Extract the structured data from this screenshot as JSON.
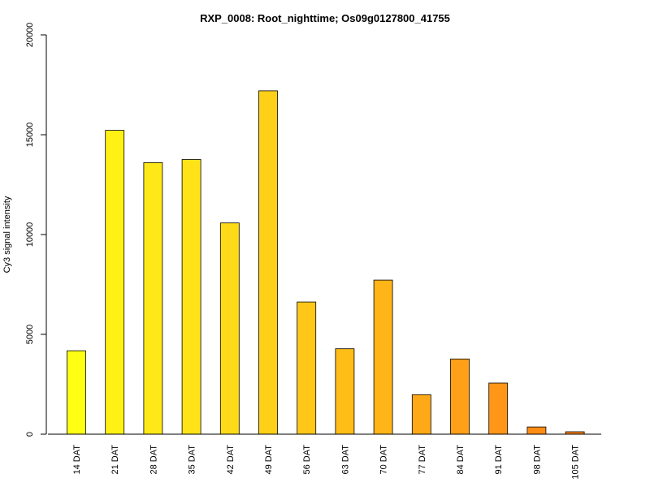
{
  "chart_data": {
    "type": "bar",
    "title": "RXP_0008: Root_nighttime; Os09g0127800_41755",
    "xlabel": "",
    "ylabel": "Cy3 signal intensity",
    "ylim": [
      0,
      20000
    ],
    "yticks": [
      0,
      5000,
      10000,
      15000,
      20000
    ],
    "categories": [
      "14 DAT",
      "21 DAT",
      "28 DAT",
      "35 DAT",
      "42 DAT",
      "49 DAT",
      "56 DAT",
      "63 DAT",
      "70 DAT",
      "77 DAT",
      "84 DAT",
      "91 DAT",
      "98 DAT",
      "105 DAT"
    ],
    "values": [
      4180,
      15220,
      13600,
      13760,
      10580,
      17200,
      6620,
      4280,
      7720,
      1980,
      3770,
      2560,
      360,
      120
    ],
    "colors": [
      "#FFFF14",
      "#FFF114",
      "#FFE817",
      "#FFE318",
      "#FFDA18",
      "#FFD018",
      "#FFC818",
      "#FFBD18",
      "#FFB418",
      "#FFA918",
      "#FFA018",
      "#FF9617",
      "#FF8C14",
      "#FF8214"
    ],
    "grid": false,
    "legend": "none"
  }
}
